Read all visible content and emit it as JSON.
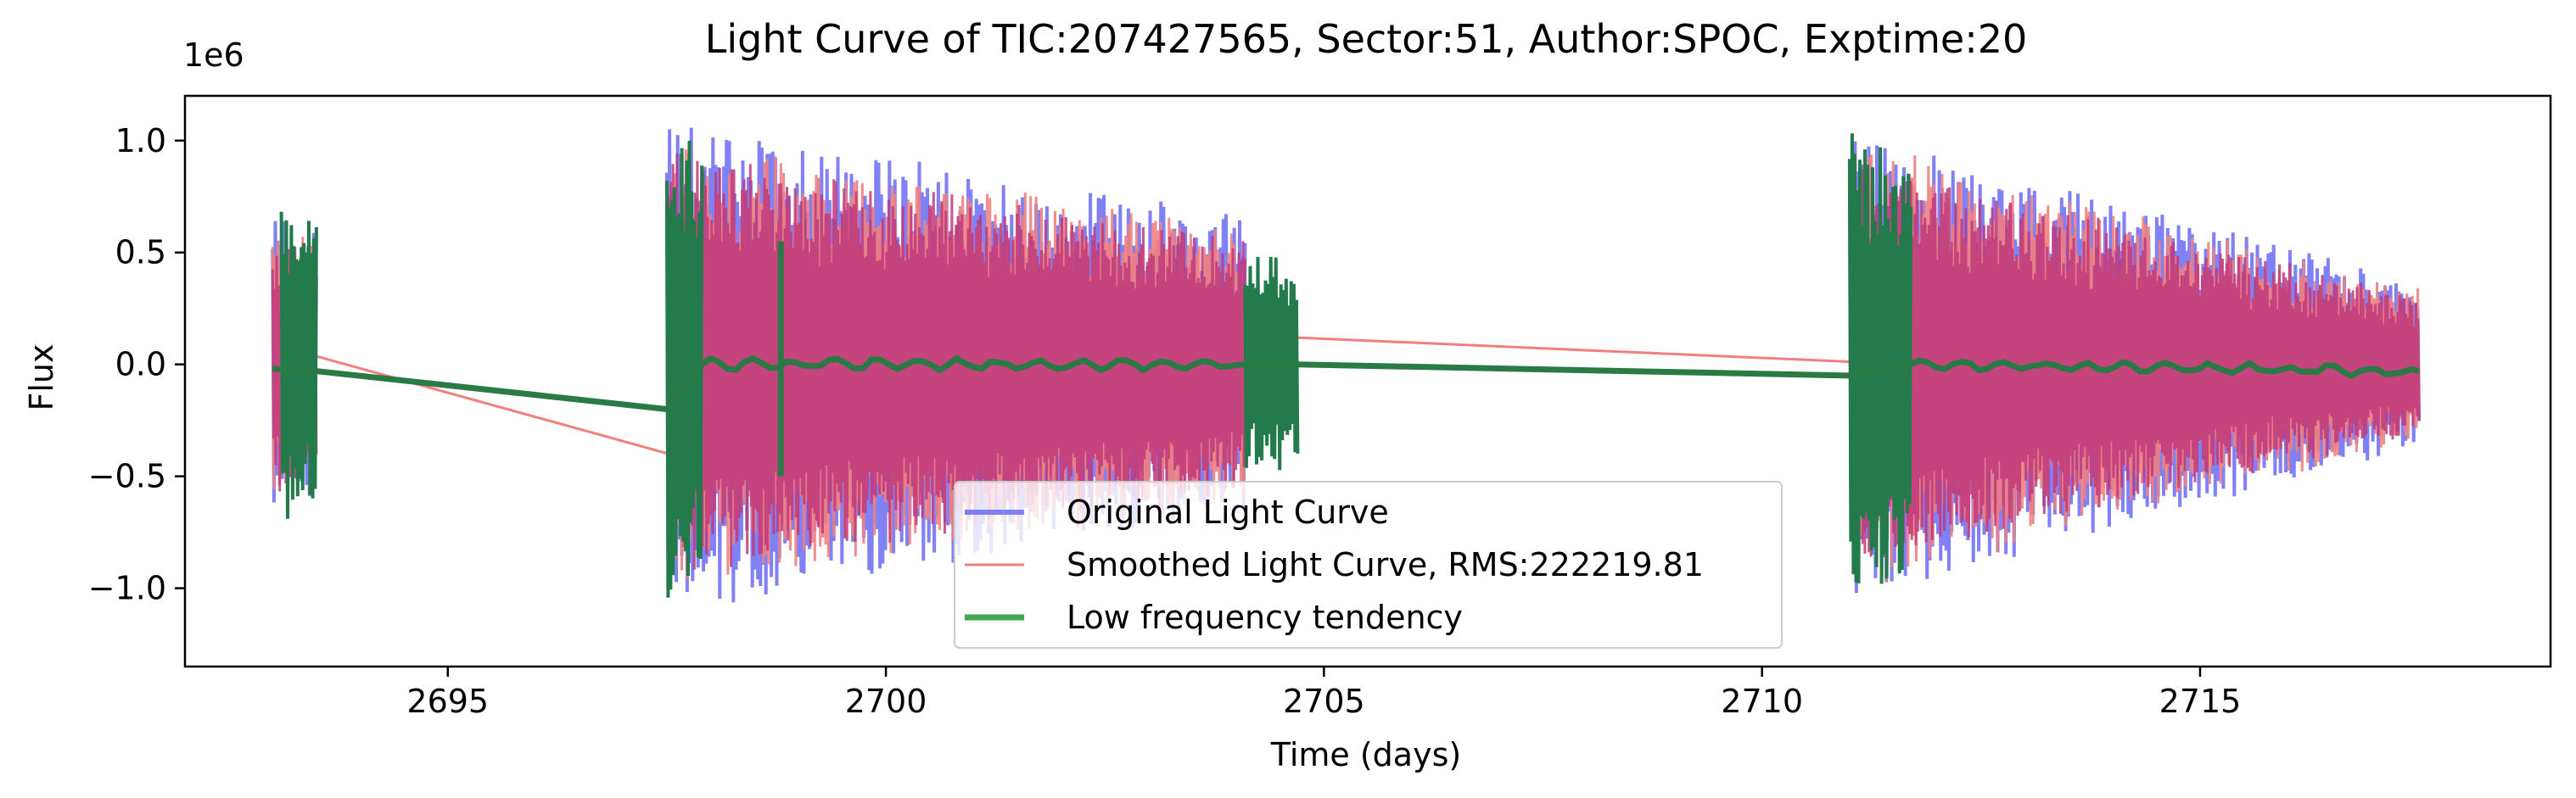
{
  "chart_data": {
    "type": "line",
    "title": "Light Curve of TIC:207427565, Sector:51, Author:SPOC, Exptime:20",
    "xlabel": "Time (days)",
    "ylabel": "Flux",
    "y_offset_label": "1e6",
    "xlim": [
      2692.0,
      2719.0
    ],
    "ylim": [
      -1.35,
      1.2
    ],
    "xticks": [
      2695,
      2700,
      2705,
      2710,
      2715
    ],
    "xtick_labels": [
      "2695",
      "2700",
      "2705",
      "2710",
      "2715"
    ],
    "yticks": [
      -1.0,
      -0.5,
      0.0,
      0.5,
      1.0
    ],
    "ytick_labels": [
      "−1.0",
      "−0.5",
      "0.0",
      "0.5",
      "1.0"
    ],
    "grid": false,
    "legend_position": "lower-center",
    "series": [
      {
        "name": "Original Light Curve",
        "color": "#6b6bf5",
        "segments": [
          {
            "x_start": 2693.0,
            "x_end": 2693.5,
            "amp_start": 0.65,
            "amp_end": 0.62
          },
          {
            "x_start": 2697.5,
            "x_end": 2704.1,
            "amp_start": 1.1,
            "amp_end": 0.65
          },
          {
            "x_start": 2711.0,
            "x_end": 2717.5,
            "amp_start": 1.05,
            "amp_end": 0.35
          }
        ]
      },
      {
        "name": "Smoothed Light Curve, RMS:222219.81",
        "color": "#f08080",
        "segments": [
          {
            "x_start": 2693.0,
            "x_end": 2693.5,
            "amp_start": 0.6,
            "amp_end": 0.55
          },
          {
            "x_start": 2697.5,
            "x_end": 2704.1,
            "amp_start": 1.0,
            "amp_end": 0.6
          },
          {
            "x_start": 2711.0,
            "x_end": 2717.5,
            "amp_start": 1.0,
            "amp_end": 0.32
          }
        ],
        "gap_lines": [
          {
            "x": [
              2693.1,
              2697.8
            ],
            "y": [
              0.08,
              -0.43
            ]
          },
          {
            "x": [
              2704.1,
              2711.7
            ],
            "y": [
              0.13,
              0.0
            ]
          }
        ]
      },
      {
        "name": "Low frequency tendency",
        "color": "#2e8b3e",
        "bands": [
          {
            "x_start": 2693.1,
            "x_end": 2693.5,
            "amp": 0.68
          },
          {
            "x_start": 2697.5,
            "x_end": 2697.9,
            "amp": 1.05
          },
          {
            "x_start": 2704.1,
            "x_end": 2704.7,
            "amp": 0.5
          },
          {
            "x_start": 2711.0,
            "x_end": 2711.7,
            "amp": 1.05
          }
        ],
        "trend": [
          {
            "x": 2693.0,
            "y": -0.02
          },
          {
            "x": 2693.5,
            "y": -0.03
          },
          {
            "x": 2697.5,
            "y": -0.2
          },
          {
            "x": 2697.9,
            "y": 0.0
          },
          {
            "x": 2704.1,
            "y": 0.0
          },
          {
            "x": 2704.7,
            "y": 0.0
          },
          {
            "x": 2711.0,
            "y": -0.05
          },
          {
            "x": 2711.7,
            "y": 0.0
          },
          {
            "x": 2717.5,
            "y": -0.03
          }
        ],
        "spike": {
          "x": 2698.8,
          "y_min": -0.5,
          "y_max": 0.55
        }
      }
    ]
  }
}
